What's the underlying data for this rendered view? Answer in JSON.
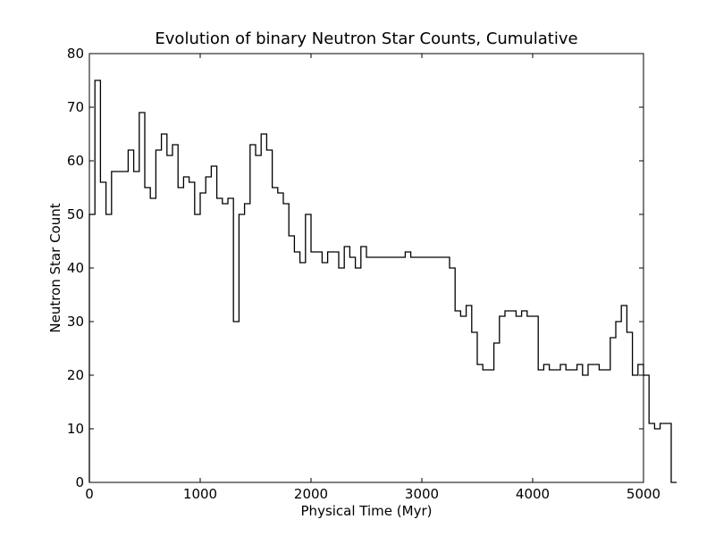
{
  "chart_data": {
    "type": "line",
    "step": true,
    "title": "Evolution of binary  Neutron Star Counts, Cumulative",
    "xlabel": "Physical Time (Myr)",
    "ylabel": "Neutron Star Count",
    "xlim": [
      0,
      5000
    ],
    "ylim": [
      0,
      80
    ],
    "xticks": [
      "0",
      "1000",
      "2000",
      "3000",
      "4000",
      "5000"
    ],
    "yticks": [
      "0",
      "10",
      "20",
      "30",
      "40",
      "50",
      "60",
      "70",
      "80"
    ],
    "grid": false,
    "series": [
      {
        "color": "#000000",
        "bin_width": 50,
        "x_start": 0,
        "values": [
          50,
          75,
          56,
          50,
          58,
          58,
          58,
          62,
          58,
          69,
          55,
          53,
          62,
          65,
          61,
          63,
          55,
          57,
          56,
          50,
          54,
          57,
          59,
          53,
          52,
          53,
          30,
          50,
          52,
          63,
          61,
          65,
          62,
          55,
          54,
          52,
          46,
          43,
          41,
          50,
          43,
          43,
          41,
          43,
          43,
          40,
          44,
          42,
          40,
          44,
          42,
          42,
          42,
          42,
          42,
          42,
          42,
          43,
          42,
          42,
          42,
          42,
          42,
          42,
          42,
          40,
          32,
          31,
          33,
          28,
          22,
          21,
          21,
          26,
          31,
          32,
          32,
          31,
          32,
          31,
          31,
          21,
          22,
          21,
          21,
          22,
          21,
          21,
          22,
          20,
          22,
          22,
          21,
          21,
          27,
          30,
          33,
          28,
          20,
          22,
          20,
          11,
          10,
          11,
          11,
          0
        ]
      }
    ]
  }
}
